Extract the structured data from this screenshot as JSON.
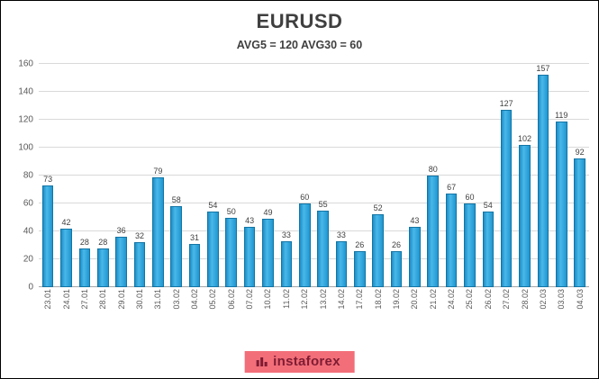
{
  "header": {
    "title": "EURUSD",
    "subtitle": "AVG5 = 120 AVG30 = 60"
  },
  "chart_data": {
    "type": "bar",
    "title": "EURUSD",
    "subtitle": "AVG5 = 120 AVG30 = 60",
    "categories": [
      "23.01",
      "24.01",
      "27.01",
      "28.01",
      "29.01",
      "30.01",
      "31.01",
      "03.02",
      "04.02",
      "05.02",
      "06.02",
      "07.02",
      "10.02",
      "11.02",
      "12.02",
      "13.02",
      "14.02",
      "17.02",
      "18.02",
      "19.02",
      "20.02",
      "21.02",
      "24.02",
      "25.02",
      "26.02",
      "27.02",
      "28.02",
      "02.03",
      "03.03",
      "04.03"
    ],
    "values": [
      73,
      42,
      28,
      28,
      36,
      32,
      79,
      58,
      31,
      54,
      50,
      43,
      49,
      33,
      60,
      55,
      33,
      26,
      52,
      26,
      43,
      80,
      67,
      60,
      54,
      127,
      102,
      157,
      119,
      92
    ],
    "ylim": [
      0,
      160
    ],
    "ytick_step": 20,
    "grid": true,
    "xlabel": "",
    "ylabel": "",
    "legend": "none",
    "bar_color": "#2fa3dc",
    "bar_border_color": "#1275a5",
    "value_label_color": "#3f3f3f"
  },
  "logo": {
    "text": "instaforex",
    "bg_color": "#f26e79",
    "text_color": "#7e1c33"
  }
}
